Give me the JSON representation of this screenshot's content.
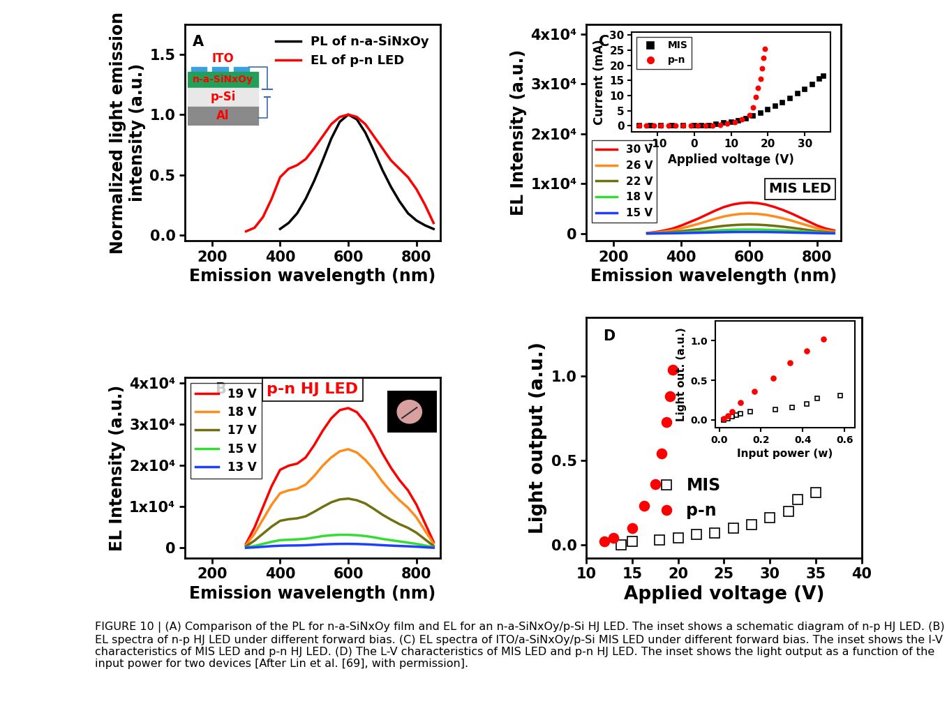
{
  "caption": "FIGURE 10 | (A) Comparison of the PL for n-a-SiNxOy film and EL for an n-a-SiNxOy/p-Si HJ LED. The inset shows a schematic diagram of n-p HJ LED. (B) EL spectra of n-p HJ LED under different forward bias. (C) EL spectra of ITO/a-SiNxOy/p-Si MIS LED under different forward bias. The inset shows the I-V characteristics of MIS LED and p-n HJ LED. (D) The L-V characteristics of MIS LED and p-n HJ LED. The inset shows the light output as a function of the input power for two devices [After Lin et al. [69], with permission].",
  "chart_data": [
    {
      "type": "line",
      "annotations": [
        "A"
      ],
      "schematic": [
        "ITO",
        "n-a-SiNxOy",
        "p-Si",
        "Al"
      ],
      "x_label": "Emission wavelength (nm)",
      "y_label": "Normalized light emission\nintensity (a.u.)",
      "xlim": [
        120,
        870
      ],
      "xticks": [
        200,
        400,
        600,
        800
      ],
      "ylim": [
        -0.05,
        1.75
      ],
      "yticks": [
        {
          "value": 0,
          "label": "0.0"
        },
        {
          "value": 0.5,
          "label": "0.5"
        },
        {
          "value": 1.0,
          "label": "1.0"
        },
        {
          "value": 1.5,
          "label": "1.5"
        }
      ],
      "legend": "upper right",
      "x": [
        300,
        325,
        350,
        375,
        400,
        425,
        450,
        475,
        500,
        525,
        550,
        575,
        600,
        625,
        650,
        675,
        700,
        725,
        750,
        775,
        800,
        825,
        850
      ],
      "series": [
        {
          "name": "PL of n-a-SiNxOy",
          "color": "#000000",
          "values": [
            null,
            null,
            null,
            null,
            0.05,
            0.1,
            0.18,
            0.3,
            0.45,
            0.62,
            0.8,
            0.94,
            1.0,
            0.96,
            0.85,
            0.7,
            0.54,
            0.4,
            0.28,
            0.18,
            0.12,
            0.08,
            0.05
          ]
        },
        {
          "name": "EL of p-n LED",
          "color": "#ff0000",
          "values": [
            0.03,
            0.06,
            0.15,
            0.3,
            0.48,
            0.55,
            0.58,
            0.63,
            0.72,
            0.82,
            0.92,
            0.98,
            1.0,
            0.98,
            0.92,
            0.82,
            0.72,
            0.62,
            0.55,
            0.48,
            0.38,
            0.25,
            0.1
          ]
        }
      ]
    },
    {
      "type": "line",
      "annotations": [
        "B",
        "p-n HJ LED"
      ],
      "x_label": "Emission wavelength (nm)",
      "y_label": "EL Intensity (a.u.)",
      "xlim": [
        120,
        870
      ],
      "xticks": [
        200,
        400,
        600,
        800
      ],
      "ylim": [
        -2500,
        41500
      ],
      "yticks": [
        0,
        {
          "value": 10000,
          "label": "1x10⁴"
        },
        {
          "value": 20000,
          "label": "2x10⁴"
        },
        {
          "value": 30000,
          "label": "3x10⁴"
        },
        {
          "value": 40000,
          "label": "4x10⁴"
        }
      ],
      "legend": "upper left",
      "x": [
        300,
        325,
        350,
        375,
        400,
        425,
        450,
        475,
        500,
        525,
        550,
        575,
        600,
        625,
        650,
        675,
        700,
        725,
        750,
        775,
        800,
        825,
        850
      ],
      "series": [
        {
          "name": "19 V",
          "color": "#ff0000",
          "values": [
            1000,
            5000,
            10000,
            15000,
            19000,
            20000,
            20500,
            22000,
            25000,
            28500,
            31500,
            33500,
            34000,
            33000,
            30500,
            27000,
            23000,
            19500,
            16500,
            14000,
            10500,
            6000,
            1500
          ]
        },
        {
          "name": "18 V",
          "color": "#ff8c1a",
          "values": [
            700,
            3500,
            7000,
            10500,
            13300,
            14000,
            14400,
            15400,
            17500,
            20000,
            22000,
            23500,
            24000,
            23200,
            21400,
            19000,
            16100,
            13700,
            11600,
            9800,
            7400,
            4200,
            1100
          ]
        },
        {
          "name": "17 V",
          "color": "#707010",
          "values": [
            400,
            1800,
            3500,
            5200,
            6600,
            7000,
            7200,
            7700,
            8800,
            10000,
            11100,
            11800,
            12000,
            11600,
            10800,
            9500,
            8100,
            6900,
            5800,
            4900,
            3700,
            2100,
            500
          ]
        },
        {
          "name": "15 V",
          "color": "#33dd33",
          "values": [
            100,
            500,
            1000,
            1500,
            1900,
            2000,
            2100,
            2250,
            2550,
            2900,
            3100,
            3200,
            3200,
            3100,
            2900,
            2600,
            2200,
            1900,
            1600,
            1300,
            1000,
            600,
            200
          ]
        },
        {
          "name": "13 V",
          "color": "#1f3fff",
          "values": [
            50,
            150,
            300,
            450,
            550,
            600,
            620,
            680,
            780,
            880,
            950,
            990,
            1000,
            970,
            900,
            800,
            680,
            580,
            490,
            410,
            310,
            180,
            60
          ]
        }
      ]
    },
    {
      "type": "line",
      "annotations": [
        "C",
        "MIS LED"
      ],
      "x_label": "Emission wavelength (nm)",
      "y_label": "EL Intensity (a.u.)",
      "xlim": [
        120,
        870
      ],
      "xticks": [
        200,
        400,
        600,
        800
      ],
      "ylim": [
        -1500,
        42000
      ],
      "yticks": [
        0,
        {
          "value": 10000,
          "label": "1x10⁴"
        },
        {
          "value": 20000,
          "label": "2x10⁴"
        },
        {
          "value": 30000,
          "label": "3x10⁴"
        },
        {
          "value": 40000,
          "label": "4x10⁴"
        }
      ],
      "legend": "lower left",
      "x": [
        300,
        325,
        350,
        375,
        400,
        425,
        450,
        475,
        500,
        525,
        550,
        575,
        600,
        625,
        650,
        675,
        700,
        725,
        750,
        775,
        800,
        825,
        850
      ],
      "series": [
        {
          "name": "30 V",
          "color": "#ff0000",
          "values": [
            100,
            300,
            600,
            1000,
            1600,
            2300,
            3000,
            3800,
            4600,
            5300,
            5800,
            6100,
            6200,
            6100,
            5800,
            5300,
            4700,
            4000,
            3200,
            2400,
            1600,
            1000,
            600
          ]
        },
        {
          "name": "26 V",
          "color": "#ff8c1a",
          "values": [
            65,
            195,
            390,
            645,
            1030,
            1480,
            1935,
            2450,
            2970,
            3420,
            3740,
            3935,
            4000,
            3935,
            3740,
            3420,
            3030,
            2580,
            2060,
            1550,
            1030,
            645,
            390
          ]
        },
        {
          "name": "22 V",
          "color": "#707010",
          "values": [
            30,
            85,
            175,
            290,
            465,
            665,
            870,
            1100,
            1335,
            1535,
            1680,
            1770,
            1800,
            1770,
            1680,
            1535,
            1365,
            1160,
            930,
            695,
            465,
            290,
            175
          ]
        },
        {
          "name": "18 V",
          "color": "#33dd33",
          "values": [
            15,
            40,
            80,
            130,
            210,
            300,
            390,
            495,
            600,
            690,
            755,
            795,
            805,
            795,
            755,
            690,
            610,
            520,
            415,
            310,
            210,
            130,
            80
          ]
        },
        {
          "name": "15 V",
          "color": "#1f3fff",
          "values": [
            5,
            15,
            30,
            50,
            80,
            115,
            150,
            190,
            230,
            265,
            290,
            305,
            310,
            305,
            290,
            265,
            235,
            200,
            160,
            120,
            80,
            50,
            30
          ]
        }
      ]
    },
    {
      "type": "scatter",
      "x_label": "Applied voltage (V)",
      "y_label": "Current (mA)",
      "xlim": [
        -17,
        37
      ],
      "xticks": [
        -10,
        0,
        10,
        20,
        30
      ],
      "ylim": [
        -2,
        31
      ],
      "yticks": [
        0,
        5,
        10,
        15,
        20,
        25,
        30
      ],
      "legend": "upper left",
      "series": [
        {
          "name": "MIS",
          "color": "#000000",
          "marker": "square",
          "x": [
            -15,
            -12,
            -9,
            -6,
            -3,
            0,
            2,
            4,
            6,
            8,
            10,
            12,
            14,
            16,
            18,
            20,
            22,
            24,
            26,
            28,
            30,
            32,
            34,
            35
          ],
          "values": [
            0,
            0,
            0,
            0,
            0,
            0,
            0.05,
            0.2,
            0.5,
            0.9,
            1.3,
            1.8,
            2.5,
            3.3,
            4.2,
            5.3,
            6.5,
            7.8,
            9.2,
            10.6,
            12.1,
            13.7,
            15.5,
            16.5
          ]
        },
        {
          "name": "p-n",
          "color": "#ff0000",
          "marker": "circle",
          "x": [
            -15,
            -13,
            -11,
            -9,
            -7,
            -5,
            -3,
            -1,
            1,
            3,
            5,
            7,
            9,
            11,
            13,
            15,
            16,
            16.7,
            17.3,
            18,
            18.4,
            18.8,
            19.2
          ],
          "values": [
            0,
            0,
            0,
            0,
            0,
            0,
            0,
            0,
            0,
            0,
            0.1,
            0.3,
            0.7,
            1.3,
            2.2,
            3.5,
            6,
            9.5,
            12.5,
            15.5,
            19,
            22.5,
            25.5
          ]
        }
      ]
    },
    {
      "type": "scatter",
      "annotations": [
        "D"
      ],
      "x_label": "Applied voltage (V)",
      "y_label": "Light output (a.u.)",
      "xlim": [
        10,
        40
      ],
      "xticks": [
        10,
        15,
        20,
        25,
        30,
        35,
        40
      ],
      "ylim": [
        -0.08,
        1.35
      ],
      "yticks": [
        {
          "value": 0,
          "label": "0.0"
        },
        {
          "value": 0.5,
          "label": "0.5"
        },
        {
          "value": 1.0,
          "label": "1.0"
        }
      ],
      "legend": "center",
      "series": [
        {
          "name": "MIS",
          "color": "#000000",
          "marker": "open square",
          "x": [
            13.8,
            15,
            18,
            20,
            22,
            24,
            26,
            28,
            30,
            32,
            33,
            35
          ],
          "values": [
            0.0,
            0.02,
            0.03,
            0.04,
            0.06,
            0.07,
            0.1,
            0.12,
            0.16,
            0.2,
            0.27,
            0.31
          ]
        },
        {
          "name": "p-n",
          "color": "#ff0000",
          "marker": "circle",
          "x": [
            12,
            13,
            15,
            16.3,
            17.5,
            18.2,
            18.7,
            19.1,
            19.4
          ],
          "values": [
            0.02,
            0.04,
            0.1,
            0.23,
            0.36,
            0.54,
            0.73,
            0.88,
            1.04
          ]
        }
      ]
    },
    {
      "type": "scatter",
      "x_label": "Input power (w)",
      "y_label": "Light out. (a.u.)",
      "xlim": [
        -0.02,
        0.65
      ],
      "xticks": [
        {
          "value": 0,
          "label": "0.0"
        },
        {
          "value": 0.2,
          "label": "0.2"
        },
        {
          "value": 0.4,
          "label": "0.4"
        },
        {
          "value": 0.6,
          "label": "0.6"
        }
      ],
      "ylim": [
        -0.1,
        1.25
      ],
      "yticks": [
        {
          "value": 0,
          "label": "0.0"
        },
        {
          "value": 0.5,
          "label": "0.5"
        },
        {
          "value": 1.0,
          "label": "1.0"
        }
      ],
      "series": [
        {
          "color": "#000000",
          "marker": "open square",
          "x": [
            0.02,
            0.04,
            0.06,
            0.08,
            0.1,
            0.15,
            0.27,
            0.35,
            0.42,
            0.47,
            0.58
          ],
          "values": [
            0.0,
            0.02,
            0.04,
            0.06,
            0.08,
            0.1,
            0.13,
            0.16,
            0.2,
            0.27,
            0.31
          ]
        },
        {
          "color": "#ff0000",
          "marker": "circle",
          "x": [
            0.02,
            0.04,
            0.06,
            0.1,
            0.17,
            0.26,
            0.34,
            0.42,
            0.5
          ],
          "values": [
            0.02,
            0.05,
            0.1,
            0.22,
            0.36,
            0.53,
            0.72,
            0.87,
            1.02
          ]
        }
      ]
    }
  ]
}
